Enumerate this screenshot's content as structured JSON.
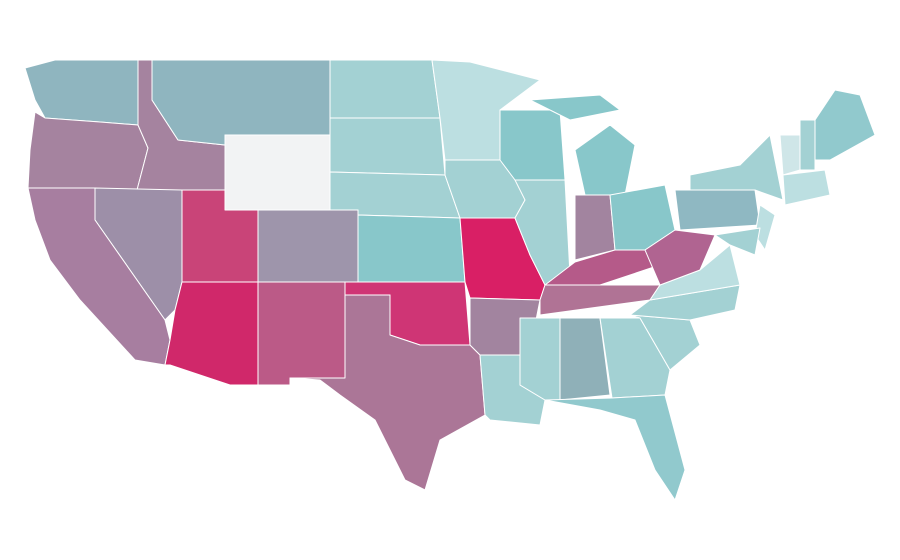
{
  "map": {
    "regions": [
      {
        "color": "#8fb5bf"
      },
      {
        "color": "#a5839f"
      },
      {
        "color": "#a5839f"
      },
      {
        "color": "#8fb5bf"
      },
      {
        "color": "#f2f3f4"
      },
      {
        "color": "#a3d1d3"
      },
      {
        "color": "#a3d1d3"
      },
      {
        "color": "#a3d1d3"
      },
      {
        "color": "#88c7ca"
      },
      {
        "color": "#9e95ab"
      },
      {
        "color": "#c94478"
      },
      {
        "color": "#9d8fa8"
      },
      {
        "color": "#a77ea0"
      },
      {
        "color": "#d0286a"
      },
      {
        "color": "#bb5a87"
      },
      {
        "color": "#cf3575"
      },
      {
        "color": "#ab7697"
      },
      {
        "color": "#bcdfe1"
      },
      {
        "color": "#a3d1d3"
      },
      {
        "color": "#d91f65"
      },
      {
        "color": "#a2849f"
      },
      {
        "color": "#a3d1d3"
      },
      {
        "color": "#88c7ca"
      },
      {
        "color": "#a3d1d3"
      },
      {
        "color": "#88c7ca"
      },
      {
        "color": "#88c7ca"
      },
      {
        "color": "#a2849f"
      },
      {
        "color": "#88c7ca"
      },
      {
        "color": "#b55a89"
      },
      {
        "color": "#b07395"
      },
      {
        "color": "#a3d1d3"
      },
      {
        "color": "#8fb0b8"
      },
      {
        "color": "#a3d1d3"
      },
      {
        "color": "#91c9cd"
      },
      {
        "color": "#a3d1d3"
      },
      {
        "color": "#a3d1d3"
      },
      {
        "color": "#bcdfe1"
      },
      {
        "color": "#b06491"
      },
      {
        "color": "#8fb8c2"
      },
      {
        "color": "#a3d1d3"
      },
      {
        "color": "#bcdfe1"
      },
      {
        "color": "#a3d1d3"
      },
      {
        "color": "#cfe6e8"
      },
      {
        "color": "#a3d1d3"
      },
      {
        "color": "#91c9cd"
      },
      {
        "color": "#bcdfe1"
      }
    ]
  }
}
